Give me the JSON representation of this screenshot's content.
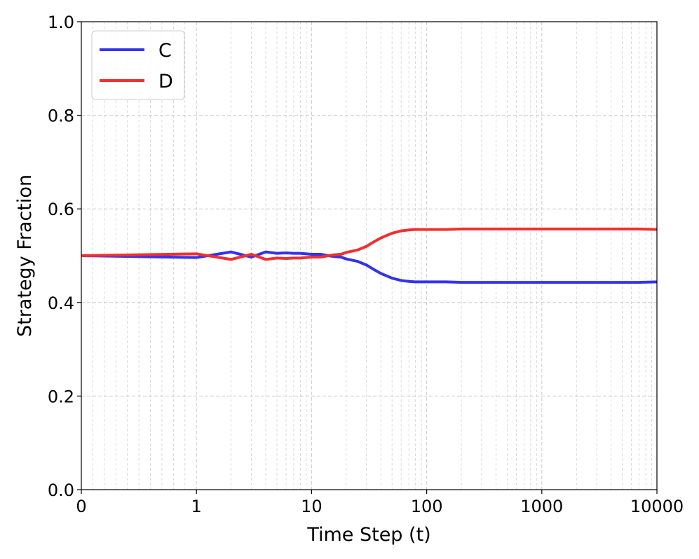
{
  "chart_data": {
    "type": "line",
    "xlabel": "Time Step (t)",
    "ylabel": "Strategy Fraction",
    "xscale": "symlog",
    "xlim": [
      0,
      10000
    ],
    "ylim": [
      0.0,
      1.0
    ],
    "xticks": [
      0,
      1,
      10,
      100,
      1000,
      10000
    ],
    "xtick_labels": [
      "0",
      "1",
      "10",
      "100",
      "1000",
      "10000"
    ],
    "yticks": [
      0.0,
      0.2,
      0.4,
      0.6,
      0.8,
      1.0
    ],
    "ytick_labels": [
      "0.0",
      "0.2",
      "0.4",
      "0.6",
      "0.8",
      "1.0"
    ],
    "grid": true,
    "legend": {
      "placement": "top-left"
    },
    "series": [
      {
        "name": "C",
        "color": "#3333ee",
        "x": [
          0,
          1,
          2,
          3,
          4,
          5,
          6,
          7,
          8,
          9,
          10,
          12,
          14,
          16,
          18,
          20,
          25,
          30,
          35,
          40,
          50,
          60,
          70,
          80,
          100,
          150,
          200,
          300,
          500,
          700,
          1000,
          2000,
          3000,
          5000,
          7000,
          10000
        ],
        "y": [
          0.5,
          0.496,
          0.508,
          0.497,
          0.508,
          0.505,
          0.506,
          0.505,
          0.505,
          0.504,
          0.503,
          0.503,
          0.5,
          0.498,
          0.497,
          0.493,
          0.488,
          0.48,
          0.47,
          0.462,
          0.452,
          0.447,
          0.445,
          0.444,
          0.444,
          0.444,
          0.443,
          0.443,
          0.443,
          0.443,
          0.443,
          0.443,
          0.443,
          0.443,
          0.443,
          0.444
        ]
      },
      {
        "name": "D",
        "color": "#f03030",
        "x": [
          0,
          1,
          2,
          3,
          4,
          5,
          6,
          7,
          8,
          9,
          10,
          12,
          14,
          16,
          18,
          20,
          25,
          30,
          35,
          40,
          50,
          60,
          70,
          80,
          100,
          150,
          200,
          300,
          500,
          700,
          1000,
          2000,
          3000,
          5000,
          7000,
          10000
        ],
        "y": [
          0.5,
          0.504,
          0.492,
          0.503,
          0.492,
          0.495,
          0.494,
          0.495,
          0.495,
          0.496,
          0.497,
          0.497,
          0.5,
          0.502,
          0.503,
          0.507,
          0.512,
          0.52,
          0.53,
          0.538,
          0.548,
          0.553,
          0.555,
          0.556,
          0.556,
          0.556,
          0.557,
          0.557,
          0.557,
          0.557,
          0.557,
          0.557,
          0.557,
          0.557,
          0.557,
          0.556
        ]
      }
    ]
  }
}
